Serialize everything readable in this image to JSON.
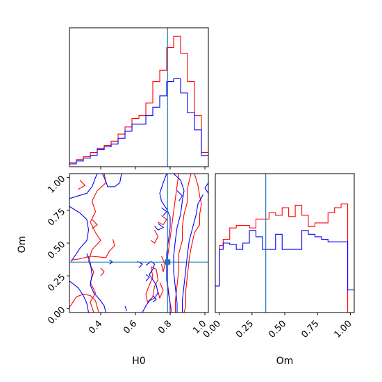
{
  "chart_data": {
    "type": "corner",
    "parameters": [
      "H0",
      "Om"
    ],
    "truths": {
      "H0": 0.785,
      "Om": 0.355
    },
    "colors": {
      "red": "#ff0000",
      "blue": "#0000ff",
      "truth": "#1f77b4",
      "axis": "#000000"
    },
    "grid": false,
    "legend": "none",
    "h0_hist": {
      "xlim": [
        0.22,
        1.02
      ],
      "bin_edges": [
        0.22,
        0.26,
        0.3,
        0.34,
        0.38,
        0.42,
        0.46,
        0.5,
        0.54,
        0.58,
        0.62,
        0.66,
        0.7,
        0.74,
        0.78,
        0.82,
        0.86,
        0.9,
        0.94,
        0.98,
        1.02
      ],
      "red_counts": [
        3,
        5,
        7,
        10,
        13,
        15,
        18,
        23,
        28,
        34,
        36,
        45,
        60,
        68,
        84,
        92,
        80,
        60,
        36,
        10
      ],
      "blue_counts": [
        2,
        4,
        6,
        8,
        12,
        14,
        16,
        20,
        25,
        30,
        30,
        36,
        42,
        50,
        60,
        62,
        52,
        38,
        26,
        8
      ],
      "ylim": [
        0,
        98
      ],
      "tick_values": [
        0.4,
        0.6,
        0.8,
        1.0
      ]
    },
    "om_hist": {
      "xlim": [
        -0.03,
        1.03
      ],
      "bin_edges": [
        -0.03,
        0.0,
        0.03,
        0.08,
        0.13,
        0.18,
        0.23,
        0.28,
        0.33,
        0.38,
        0.43,
        0.48,
        0.53,
        0.58,
        0.63,
        0.68,
        0.73,
        0.78,
        0.83,
        0.88,
        0.93,
        0.98,
        1.03
      ],
      "red_counts": [
        21,
        53,
        58,
        67,
        69,
        69,
        67,
        74,
        74,
        79,
        77,
        83,
        76,
        85,
        77,
        68,
        71,
        71,
        79,
        83,
        86,
        0
      ],
      "blue_counts": [
        21,
        50,
        55,
        54,
        50,
        55,
        65,
        60,
        50,
        50,
        62,
        50,
        50,
        50,
        65,
        62,
        60,
        58,
        56,
        56,
        56,
        18
      ],
      "ylim": [
        0,
        110
      ],
      "tick_values": [
        0.0,
        0.25,
        0.5,
        0.75,
        1.0
      ],
      "tick_labels": [
        "0.00",
        "0.25",
        "0.50",
        "0.75",
        "1.00"
      ],
      "xlabel": "Om"
    },
    "contour_panel": {
      "xlim": [
        0.22,
        1.02
      ],
      "ylim": [
        -0.03,
        1.03
      ],
      "x_tick_values": [
        0.4,
        0.6,
        0.8,
        1.0
      ],
      "x_tick_labels": [
        "0.4",
        "0.6",
        "0.8",
        "1.0"
      ],
      "y_tick_values": [
        0.0,
        0.25,
        0.5,
        0.75,
        1.0
      ],
      "y_tick_labels": [
        "0.00",
        "0.25",
        "0.50",
        "0.75",
        "1.00"
      ],
      "xlabel": "H0",
      "ylabel": "Om",
      "truth_marker": "square",
      "red_contours": [
        [
          [
            0.42,
            1.03
          ],
          [
            0.43,
            0.96
          ],
          [
            0.38,
            0.9
          ],
          [
            0.35,
            0.82
          ],
          [
            0.37,
            0.74
          ],
          [
            0.34,
            0.66
          ],
          [
            0.37,
            0.58
          ],
          [
            0.4,
            0.52
          ],
          [
            0.35,
            0.45
          ],
          [
            0.33,
            0.36
          ],
          [
            0.36,
            0.28
          ],
          [
            0.34,
            0.2
          ],
          [
            0.37,
            0.12
          ],
          [
            0.34,
            0.05
          ],
          [
            0.36,
            -0.03
          ]
        ],
        [
          [
            0.28,
            0.98
          ],
          [
            0.31,
            0.94
          ],
          [
            0.27,
            0.91
          ]
        ],
        [
          [
            0.35,
            0.68
          ],
          [
            0.38,
            0.64
          ],
          [
            0.35,
            0.61
          ]
        ],
        [
          [
            0.23,
            0.37
          ],
          [
            0.28,
            0.38
          ],
          [
            0.34,
            0.4
          ],
          [
            0.43,
            0.39
          ],
          [
            0.45,
            0.44
          ],
          [
            0.48,
            0.48
          ],
          [
            0.47,
            0.53
          ]
        ],
        [
          [
            0.4,
            0.25
          ],
          [
            0.42,
            0.28
          ],
          [
            0.4,
            0.31
          ]
        ],
        [
          [
            0.22,
            0.01
          ],
          [
            0.24,
            0.05
          ],
          [
            0.26,
            0.09
          ],
          [
            0.3,
            0.11
          ],
          [
            0.34,
            0.1
          ],
          [
            0.37,
            0.06
          ],
          [
            0.38,
            0.01
          ],
          [
            0.39,
            -0.03
          ]
        ],
        [
          [
            0.85,
            1.03
          ],
          [
            0.84,
            0.94
          ],
          [
            0.83,
            0.84
          ],
          [
            0.82,
            0.74
          ],
          [
            0.81,
            0.64
          ],
          [
            0.8,
            0.54
          ],
          [
            0.79,
            0.44
          ],
          [
            0.78,
            0.34
          ],
          [
            0.78,
            0.24
          ],
          [
            0.79,
            0.14
          ],
          [
            0.8,
            0.04
          ],
          [
            0.81,
            -0.03
          ]
        ],
        [
          [
            0.92,
            1.03
          ],
          [
            0.9,
            0.92
          ],
          [
            0.9,
            0.82
          ],
          [
            0.88,
            0.72
          ],
          [
            0.87,
            0.62
          ],
          [
            0.87,
            0.52
          ],
          [
            0.85,
            0.42
          ],
          [
            0.85,
            0.3
          ],
          [
            0.84,
            0.18
          ],
          [
            0.83,
            0.06
          ],
          [
            0.83,
            -0.03
          ]
        ],
        [
          [
            0.94,
            1.03
          ],
          [
            0.96,
            0.94
          ],
          [
            0.97,
            0.86
          ],
          [
            0.98,
            0.8
          ],
          [
            0.97,
            0.72
          ],
          [
            0.97,
            0.64
          ],
          [
            0.94,
            0.58
          ],
          [
            0.93,
            0.52
          ],
          [
            0.92,
            0.46
          ],
          [
            0.91,
            0.38
          ],
          [
            0.9,
            0.26
          ],
          [
            0.89,
            0.14
          ],
          [
            0.89,
            0.02
          ],
          [
            0.88,
            -0.03
          ]
        ],
        [
          [
            0.75,
            0.71
          ],
          [
            0.78,
            0.68
          ],
          [
            0.76,
            0.64
          ],
          [
            0.73,
            0.66
          ]
        ],
        [
          [
            0.71,
            0.6
          ],
          [
            0.73,
            0.55
          ],
          [
            0.71,
            0.5
          ],
          [
            0.69,
            0.52
          ]
        ],
        [
          [
            0.69,
            0.32
          ],
          [
            0.72,
            0.3
          ],
          [
            0.73,
            0.22
          ],
          [
            0.71,
            0.17
          ],
          [
            0.7,
            0.09
          ],
          [
            0.67,
            0.05
          ],
          [
            0.66,
            0.11
          ],
          [
            0.68,
            0.18
          ],
          [
            0.7,
            0.24
          ],
          [
            0.69,
            0.32
          ]
        ],
        [
          [
            0.75,
            0.4
          ],
          [
            0.77,
            0.34
          ],
          [
            0.76,
            0.28
          ],
          [
            0.75,
            0.34
          ]
        ],
        [
          [
            0.74,
            0.2
          ],
          [
            0.76,
            0.14
          ],
          [
            0.74,
            0.08
          ],
          [
            0.73,
            0.13
          ]
        ]
      ],
      "blue_contours": [
        [
          [
            0.41,
            1.03
          ],
          [
            0.43,
            0.97
          ],
          [
            0.44,
            0.93
          ],
          [
            0.48,
            0.93
          ],
          [
            0.51,
            0.96
          ],
          [
            0.52,
            1.03
          ]
        ],
        [
          [
            0.22,
            0.84
          ],
          [
            0.27,
            0.86
          ],
          [
            0.32,
            0.88
          ],
          [
            0.35,
            0.93
          ],
          [
            0.37,
            1.0
          ],
          [
            0.38,
            1.03
          ]
        ],
        [
          [
            0.22,
            0.78
          ],
          [
            0.28,
            0.73
          ],
          [
            0.32,
            0.68
          ],
          [
            0.33,
            0.6
          ],
          [
            0.32,
            0.52
          ],
          [
            0.28,
            0.46
          ],
          [
            0.25,
            0.4
          ],
          [
            0.23,
            0.36
          ]
        ],
        [
          [
            0.32,
            0.42
          ],
          [
            0.34,
            0.35
          ],
          [
            0.35,
            0.26
          ],
          [
            0.34,
            0.18
          ],
          [
            0.36,
            0.12
          ],
          [
            0.4,
            0.06
          ],
          [
            0.42,
            0.02
          ],
          [
            0.43,
            -0.03
          ]
        ],
        [
          [
            0.22,
            0.21
          ],
          [
            0.27,
            0.16
          ],
          [
            0.3,
            0.1
          ],
          [
            0.32,
            0.04
          ],
          [
            0.33,
            -0.03
          ]
        ],
        [
          [
            0.45,
            0.37
          ],
          [
            0.47,
            0.355
          ],
          [
            0.45,
            0.34
          ]
        ],
        [
          [
            0.54,
            0.02
          ],
          [
            0.55,
            -0.02
          ]
        ],
        [
          [
            0.78,
            1.03
          ],
          [
            0.76,
            0.96
          ],
          [
            0.74,
            0.88
          ],
          [
            0.75,
            0.82
          ],
          [
            0.78,
            0.76
          ],
          [
            0.8,
            0.7
          ],
          [
            0.8,
            0.62
          ],
          [
            0.79,
            0.52
          ],
          [
            0.78,
            0.42
          ],
          [
            0.78,
            0.32
          ],
          [
            0.78,
            0.22
          ],
          [
            0.79,
            0.12
          ],
          [
            0.8,
            0.04
          ],
          [
            0.8,
            -0.03
          ]
        ],
        [
          [
            0.82,
            1.03
          ],
          [
            0.86,
            0.98
          ],
          [
            0.88,
            0.9
          ],
          [
            0.87,
            0.82
          ],
          [
            0.86,
            0.72
          ],
          [
            0.84,
            0.62
          ],
          [
            0.83,
            0.52
          ],
          [
            0.82,
            0.4
          ],
          [
            0.82,
            0.28
          ],
          [
            0.83,
            0.16
          ],
          [
            0.84,
            0.04
          ],
          [
            0.84,
            -0.03
          ]
        ],
        [
          [
            0.99,
            0.87
          ],
          [
            0.96,
            0.8
          ],
          [
            0.95,
            0.72
          ],
          [
            0.93,
            0.62
          ],
          [
            0.91,
            0.52
          ],
          [
            0.9,
            0.42
          ],
          [
            0.89,
            0.3
          ],
          [
            0.88,
            0.18
          ],
          [
            0.87,
            0.06
          ],
          [
            0.87,
            -0.03
          ]
        ],
        [
          [
            1.02,
            0.96
          ],
          [
            1.0,
            0.92
          ],
          [
            1.02,
            0.88
          ]
        ],
        [
          [
            0.66,
            0.33
          ],
          [
            0.69,
            0.36
          ],
          [
            0.71,
            0.34
          ],
          [
            0.7,
            0.3
          ],
          [
            0.68,
            0.26
          ],
          [
            0.7,
            0.22
          ],
          [
            0.72,
            0.18
          ],
          [
            0.73,
            0.12
          ],
          [
            0.71,
            0.08
          ],
          [
            0.68,
            0.06
          ],
          [
            0.66,
            0.02
          ],
          [
            0.64,
            -0.03
          ]
        ],
        [
          [
            0.61,
            0.36
          ],
          [
            0.64,
            0.34
          ],
          [
            0.62,
            0.31
          ]
        ],
        [
          [
            0.66,
            0.26
          ],
          [
            0.68,
            0.24
          ],
          [
            0.66,
            0.21
          ]
        ],
        [
          [
            0.7,
            0.1
          ],
          [
            0.72,
            0.07
          ],
          [
            0.7,
            0.05
          ]
        ],
        [
          [
            0.73,
            0.65
          ],
          [
            0.76,
            0.62
          ],
          [
            0.73,
            0.6
          ],
          [
            0.71,
            0.63
          ]
        ],
        [
          [
            0.75,
            0.77
          ],
          [
            0.78,
            0.74
          ],
          [
            0.76,
            0.71
          ]
        ],
        [
          [
            0.84,
            0.9
          ],
          [
            0.87,
            0.86
          ],
          [
            0.85,
            0.82
          ]
        ]
      ]
    }
  }
}
